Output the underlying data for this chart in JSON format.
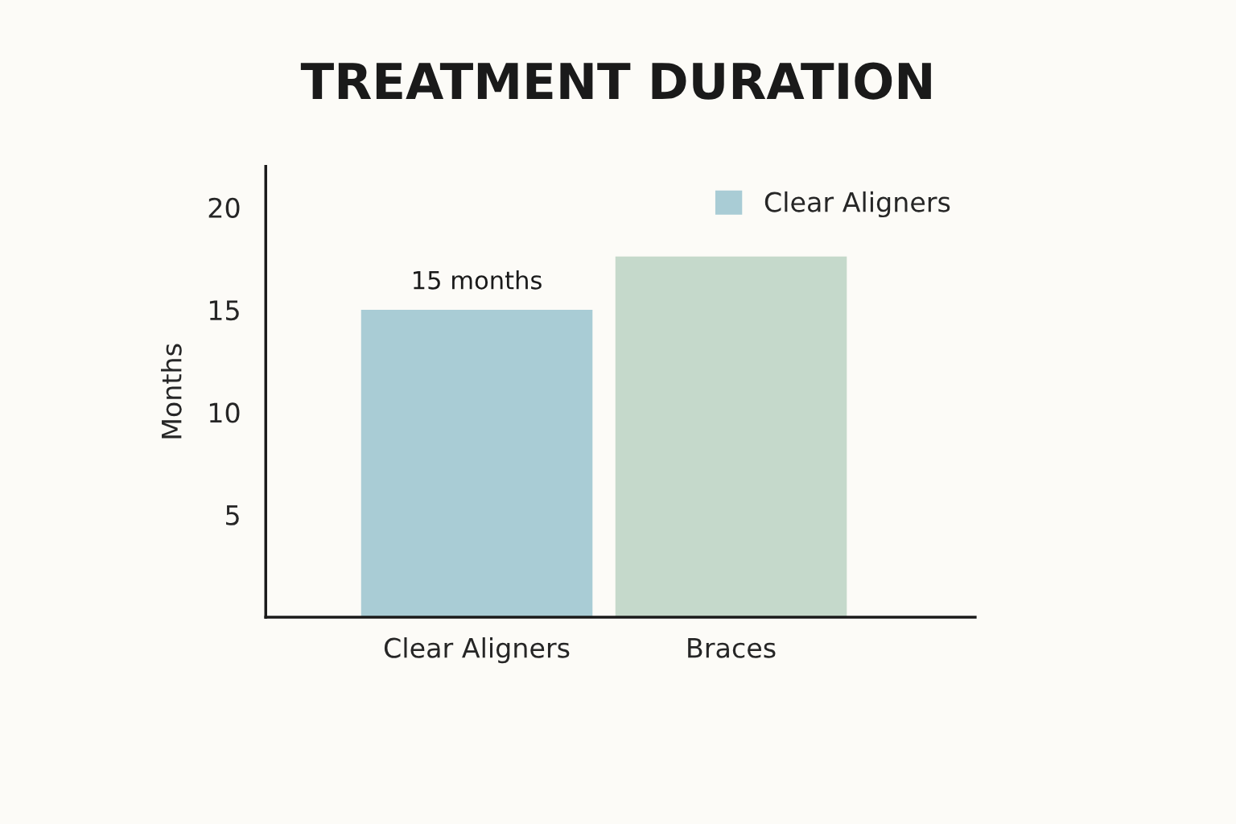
{
  "chart_data": {
    "type": "bar",
    "title": "TREATMENT DURATION",
    "ylabel": "Months",
    "categories": [
      "Clear Aligners",
      "Braces"
    ],
    "series": [
      {
        "name": "Clear Aligners",
        "colors": [
          "#a9ccd5",
          "#c5d9cb"
        ],
        "values": [
          15,
          17.6
        ],
        "value_labels": [
          "15 months",
          null
        ]
      }
    ],
    "ylim": [
      0,
      22
    ],
    "yticks": [
      5,
      10,
      15,
      20
    ],
    "grid": false,
    "legend": "top right"
  }
}
